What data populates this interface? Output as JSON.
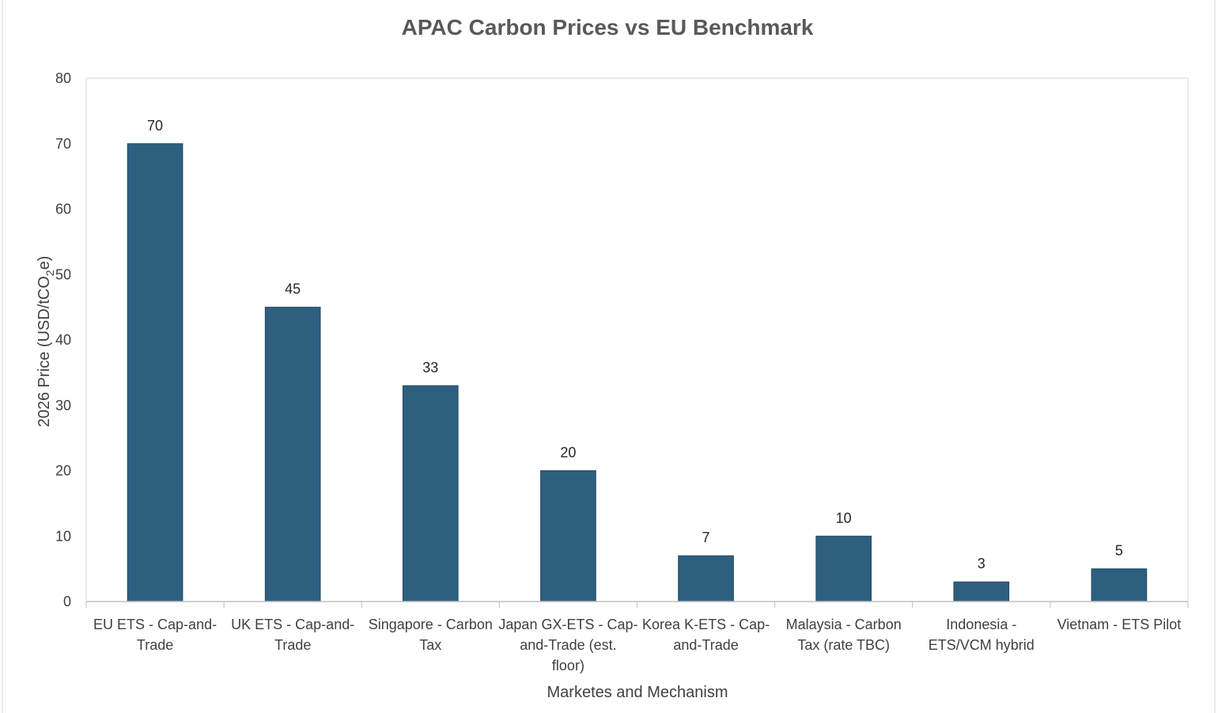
{
  "chart_data": {
    "type": "bar",
    "title": "APAC Carbon Prices vs EU Benchmark",
    "xlabel": "Marketes and Mechanism",
    "ylabel": {
      "prefix": "2026 Price (USD/tCO",
      "subscript": "2",
      "suffix": "e)"
    },
    "ylim": [
      0,
      80
    ],
    "yticks": [
      0,
      10,
      20,
      30,
      40,
      50,
      60,
      70,
      80
    ],
    "grid": false,
    "categories": [
      [
        "EU ETS - Cap-and-",
        "Trade"
      ],
      [
        "UK ETS - Cap-and-",
        "Trade"
      ],
      [
        "Singapore - Carbon",
        "Tax"
      ],
      [
        "Japan GX-ETS - Cap-",
        "and-Trade (est.",
        "floor)"
      ],
      [
        "Korea K-ETS - Cap-",
        "and-Trade"
      ],
      [
        "Malaysia - Carbon",
        "Tax (rate TBC)"
      ],
      [
        "Indonesia -",
        "ETS/VCM hybrid"
      ],
      [
        "Vietnam - ETS Pilot"
      ]
    ],
    "values": [
      70,
      45,
      33,
      20,
      7,
      10,
      3,
      5
    ],
    "data_labels": [
      "70",
      "45",
      "33",
      "20",
      "7",
      "10",
      "3",
      "5"
    ],
    "bar_color": "#2e5f7f"
  }
}
